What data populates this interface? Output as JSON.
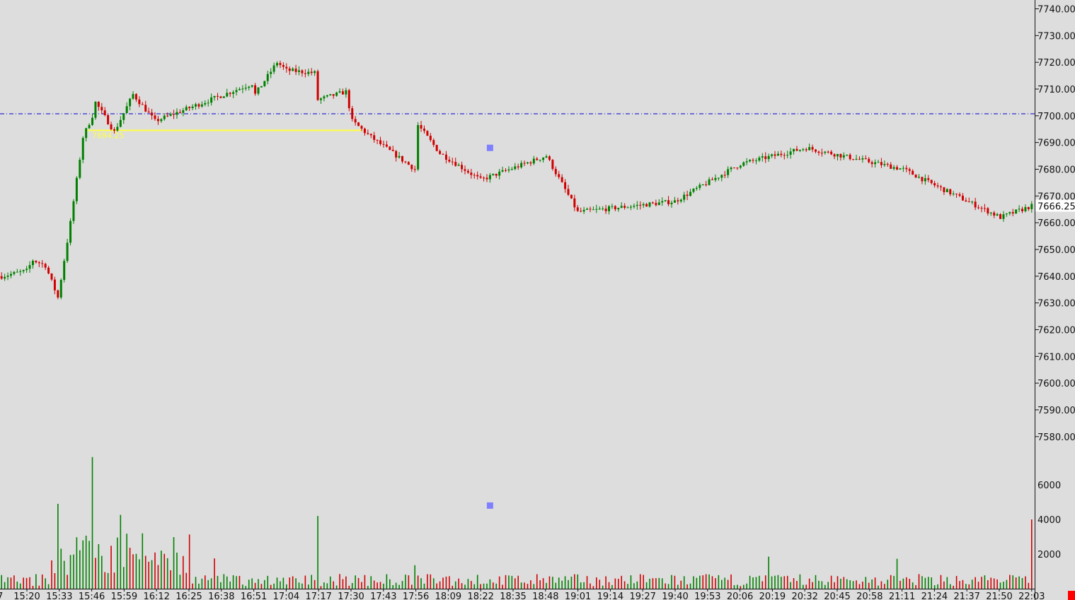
{
  "chart_data": {
    "type": "candlestick",
    "instrument_last_price": "7666.25",
    "price_axis": {
      "ylim": [
        7575,
        7742
      ],
      "tick_labels": [
        "7740.00",
        "7730.00",
        "7720.00",
        "7710.00",
        "7700.00",
        "7690.00",
        "7680.00",
        "7670.00",
        "7660.00",
        "7650.00",
        "7640.00",
        "7630.00",
        "7620.00",
        "7610.00",
        "7600.00",
        "7590.00",
        "7580.00"
      ]
    },
    "volume_axis": {
      "ylim": [
        0,
        7900
      ],
      "tick_labels": [
        "6000",
        "4000",
        "2000"
      ]
    },
    "time_labels": [
      "15:20",
      "15:33",
      "15:46",
      "15:59",
      "16:12",
      "16:25",
      "16:38",
      "16:51",
      "17:04",
      "17:17",
      "17:30",
      "17:43",
      "17:56",
      "18:09",
      "18:22",
      "18:35",
      "18:48",
      "19:01",
      "19:14",
      "19:27",
      "19:40",
      "19:53",
      "20:06",
      "20:19",
      "20:32",
      "20:45",
      "20:58",
      "21:11",
      "21:24",
      "21:37",
      "21:50",
      "22:03"
    ],
    "left_partial_time_label": "7",
    "reference_line": {
      "price": 7700.75,
      "style": "dash-dot",
      "color": "#0000cc"
    },
    "zone": {
      "top": 7694.8,
      "bottom": 7694.2,
      "color": "#ffff44",
      "label": "7694.25"
    },
    "markers": [
      {
        "pane": "price",
        "time_index": 156,
        "price": 7688.0,
        "color": "#8080ff"
      },
      {
        "pane": "volume",
        "time_index": 156,
        "value": 4800,
        "color": "#8080ff"
      }
    ],
    "key_closes": [
      {
        "t": "15:20",
        "price": 7642
      },
      {
        "t": "15:33",
        "price": 7632
      },
      {
        "t": "15:46",
        "price": 7700
      },
      {
        "t": "16:12",
        "price": 7698
      },
      {
        "t": "16:51",
        "price": 7708
      },
      {
        "t": "17:04",
        "price": 7717
      },
      {
        "t": "17:17",
        "price": 7706
      },
      {
        "t": "17:30",
        "price": 7698
      },
      {
        "t": "17:56",
        "price": 7680
      },
      {
        "t": "18:22",
        "price": 7676
      },
      {
        "t": "18:48",
        "price": 7685
      },
      {
        "t": "19:01",
        "price": 7664
      },
      {
        "t": "19:40",
        "price": 7668
      },
      {
        "t": "20:06",
        "price": 7682
      },
      {
        "t": "20:32",
        "price": 7688
      },
      {
        "t": "21:11",
        "price": 7680
      },
      {
        "t": "21:24",
        "price": 7674
      },
      {
        "t": "21:50",
        "price": 7662
      },
      {
        "t": "22:03",
        "price": 7666.25
      }
    ],
    "volume_spikes": [
      {
        "t": "15:33",
        "value": 4900
      },
      {
        "t": "15:46",
        "value": 7600
      },
      {
        "t": "17:17",
        "value": 4200
      },
      {
        "t": "22:03",
        "value": 4000
      }
    ],
    "colors": {
      "up": "#008000",
      "down": "#d00000",
      "background": "#dddddd",
      "last_price_box": "#ffffff"
    }
  }
}
